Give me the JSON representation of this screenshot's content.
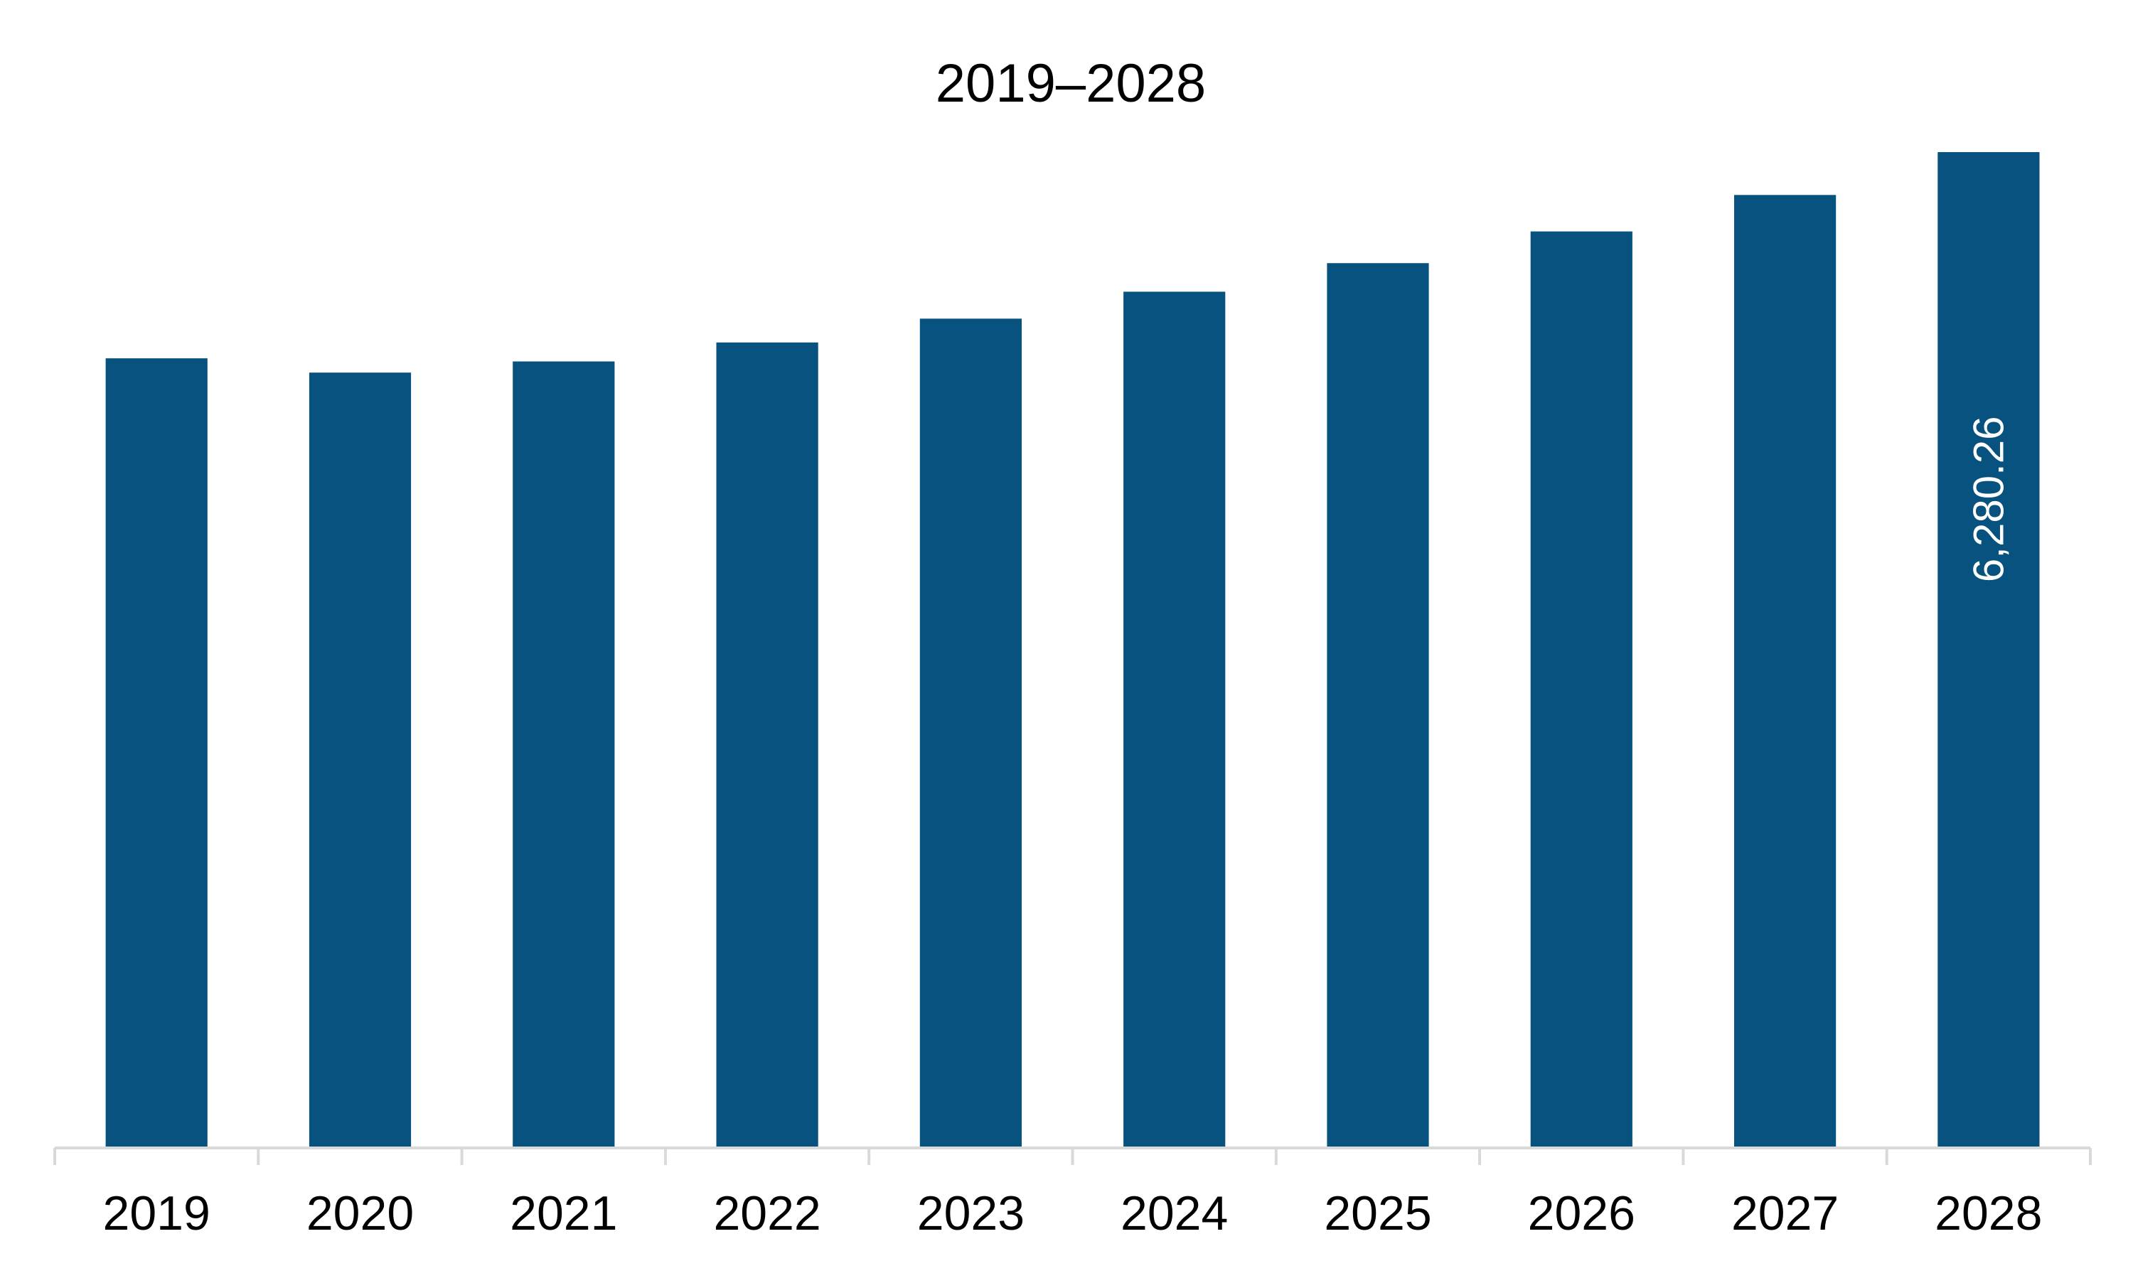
{
  "chart_data": {
    "type": "bar",
    "title": "2019–2028",
    "xlabel": "",
    "ylabel": "",
    "categories": [
      "2019",
      "2020",
      "2021",
      "2022",
      "2023",
      "2024",
      "2025",
      "2026",
      "2027",
      "2028"
    ],
    "values": [
      4980,
      4890,
      4960,
      5080,
      5230,
      5400,
      5580,
      5780,
      6010,
      6280.26
    ],
    "data_labels": [
      {
        "category": "2028",
        "text": "6,280.26",
        "orientation": "vertical"
      }
    ],
    "ylim": [
      0,
      6500
    ],
    "grid": false,
    "legend": "none",
    "colors": {
      "bar": "#07527f",
      "axis": "#d9d9d9",
      "text": "#000000",
      "label_on_bar": "#ffffff"
    }
  }
}
